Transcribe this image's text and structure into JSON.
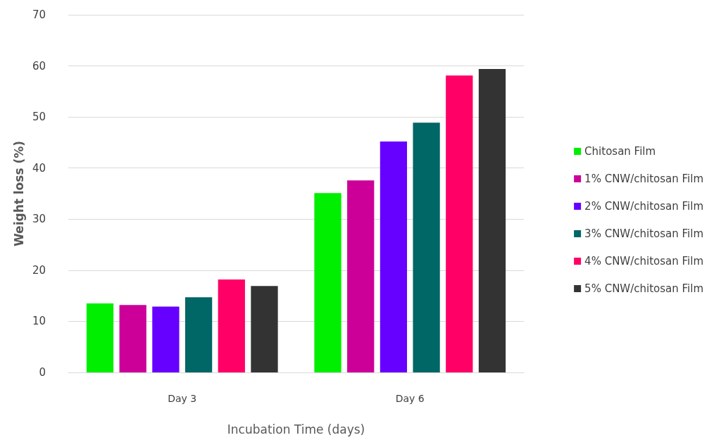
{
  "chart_data": {
    "type": "bar",
    "xlabel": "Incubation Time (days)",
    "ylabel": "Weight loss (%)",
    "categories": [
      "Day 3",
      "Day 6"
    ],
    "series": [
      {
        "name": "Chitosan Film",
        "color": "#00ee00",
        "values": [
          13.5,
          35.1
        ]
      },
      {
        "name": "1% CNW/chitosan Film",
        "color": "#cc0099",
        "values": [
          13.2,
          37.6
        ]
      },
      {
        "name": "2% CNW/chitosan Film",
        "color": "#6600ff",
        "values": [
          12.9,
          45.2
        ]
      },
      {
        "name": "3% CNW/chitosan Film",
        "color": "#006666",
        "values": [
          14.7,
          48.9
        ]
      },
      {
        "name": "4% CNW/chitosan Film",
        "color": "#ff0066",
        "values": [
          18.2,
          58.1
        ]
      },
      {
        "name": "5% CNW/chitosan Film",
        "color": "#333333",
        "values": [
          16.9,
          59.4
        ]
      }
    ],
    "ylim": [
      0,
      70
    ],
    "yticks": [
      0,
      10,
      20,
      30,
      40,
      50,
      60,
      70
    ],
    "grid": "y",
    "legend": "right"
  }
}
